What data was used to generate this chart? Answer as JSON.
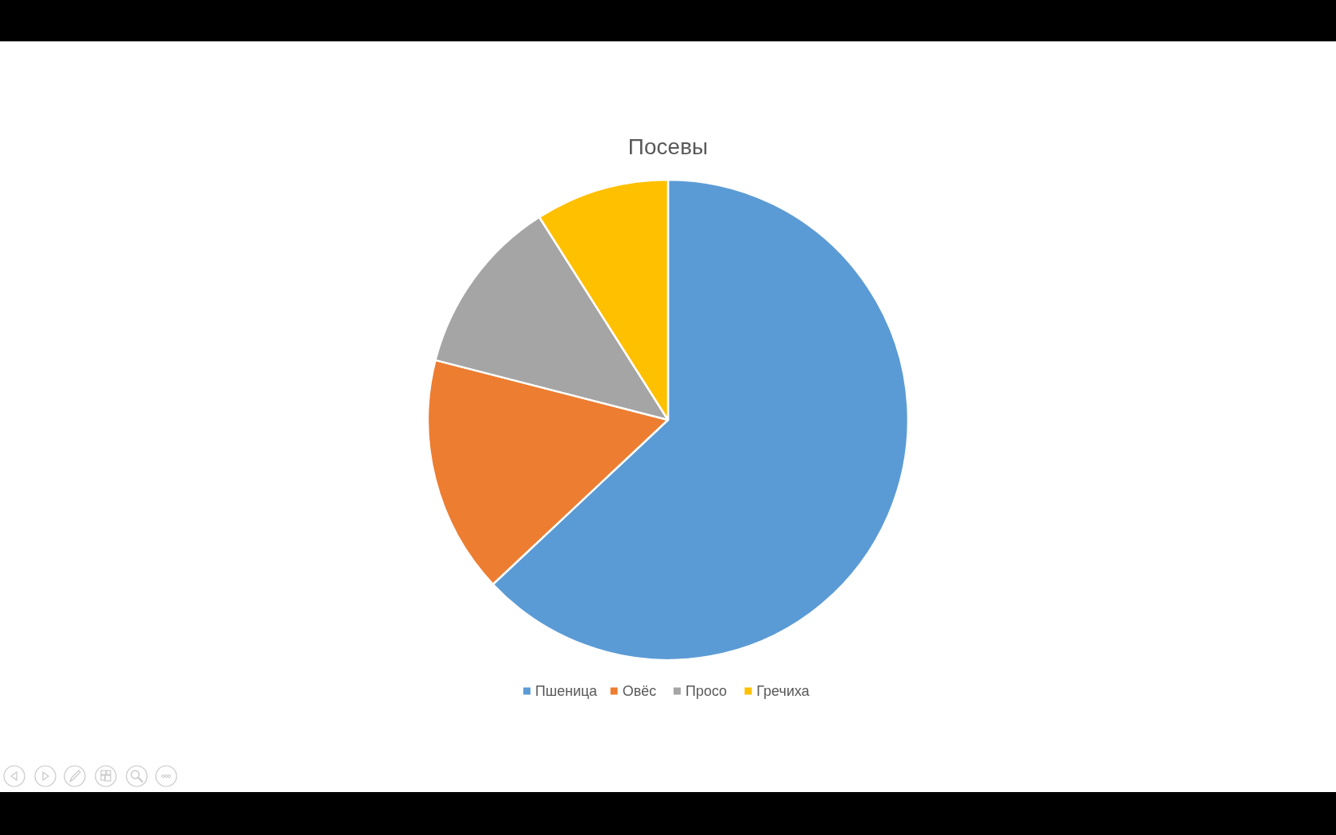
{
  "chart_data": {
    "type": "pie",
    "title": "Посевы",
    "categories": [
      "Пшеница",
      "Овёс",
      "Просо",
      "Гречиха"
    ],
    "values": [
      63,
      16,
      12,
      9
    ],
    "colors": [
      "#5b9bd5",
      "#ed7d31",
      "#a5a5a5",
      "#ffc000"
    ],
    "legend": "bottom"
  }
}
